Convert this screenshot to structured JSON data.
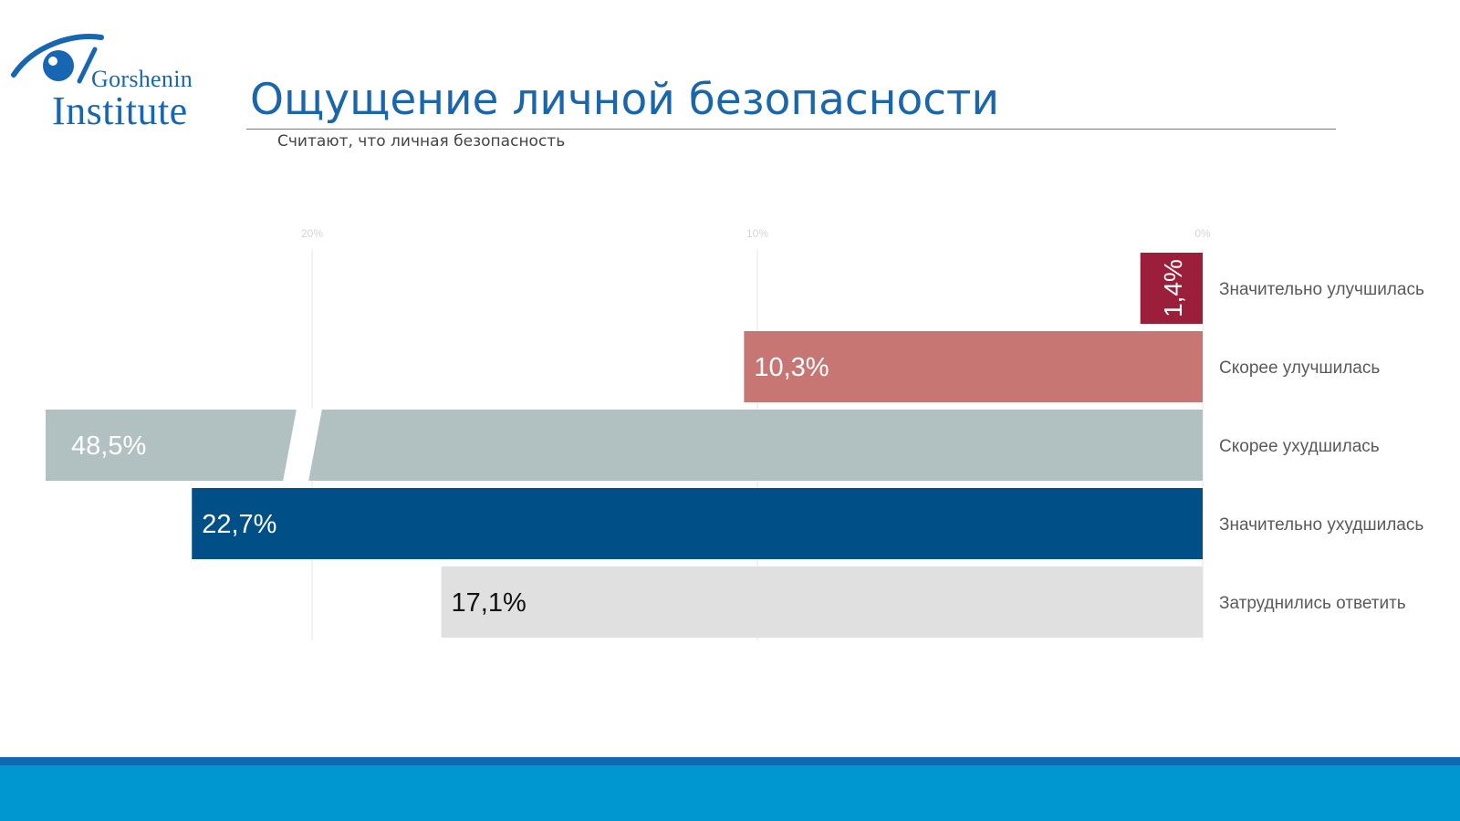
{
  "header": {
    "logo_line1": "Gorshenin",
    "logo_line2": "Institute",
    "title": "Ощущение личной безопасности",
    "subtitle": "Считают, что личная безопасность"
  },
  "chart_data": {
    "type": "bar",
    "orientation": "horizontal",
    "axis": {
      "ticks": [
        20,
        10,
        0
      ],
      "tick_labels": [
        "20%",
        "10%",
        "0%"
      ],
      "xlim": [
        0,
        26
      ],
      "direction": "right-to-left",
      "grid": true
    },
    "categories": [
      "Значительно улучшилась",
      "Скорее улучшилась",
      "Скорее ухудшилась",
      "Значительно ухудшилась",
      "Затруднились ответить"
    ],
    "values": [
      1.4,
      10.3,
      48.5,
      22.7,
      17.1
    ],
    "value_labels": [
      "1,4%",
      "10,3%",
      "48,5%",
      "22,7%",
      "17,1%"
    ],
    "colors": [
      "#9b1f3a",
      "#c77674",
      "#b1c0c0",
      "#004f86",
      "#e0e0e0"
    ],
    "label_colors": [
      "#ffffff",
      "#ffffff",
      "#ffffff",
      "#ffffff",
      "#111111"
    ],
    "broken_bar": [
      false,
      false,
      true,
      false,
      false
    ]
  },
  "footer": {
    "color": "#0096d0",
    "line_color": "#1069b0"
  }
}
